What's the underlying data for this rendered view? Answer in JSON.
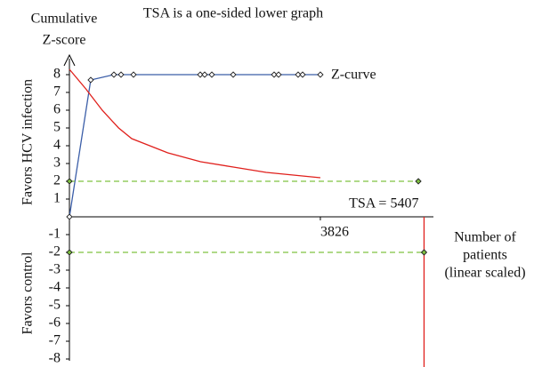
{
  "chart_data": {
    "type": "line",
    "title": "TSA is a one-sided lower graph",
    "y_label": [
      "Cumulative",
      "Z-score"
    ],
    "x_label": [
      "Number of",
      "patients",
      "(linear scaled)"
    ],
    "side_labels": [
      "Favors HCV infection",
      "Favors control"
    ],
    "xlim": [
      0,
      5550
    ],
    "ylim": [
      -8,
      8
    ],
    "xticks": [
      3826
    ],
    "yticks": [
      -8,
      -7,
      -6,
      -5,
      -4,
      -3,
      -2,
      -1,
      1,
      2,
      3,
      4,
      5,
      6,
      7,
      8
    ],
    "series": [
      {
        "name": "Z-curve",
        "color": "#3b5ea8",
        "markers": true,
        "x": [
          0,
          325,
          678,
          787,
          977,
          1995,
          2062,
          2171,
          2497,
          3121,
          3189,
          3487,
          3555,
          3826
        ],
        "values": [
          0,
          7.7,
          8,
          8,
          8,
          8,
          8,
          8,
          8,
          8,
          8,
          8,
          8,
          8
        ]
      },
      {
        "color": "#e0201c",
        "markers": false,
        "x": [
          0,
          250,
          500,
          750,
          950,
          1500,
          2000,
          2500,
          3000,
          3826
        ],
        "values": [
          8.3,
          7.2,
          6.0,
          5.0,
          4.4,
          3.6,
          3.1,
          2.8,
          2.5,
          2.2
        ]
      },
      {
        "color": "#7fc241",
        "markers": true,
        "dashed": true,
        "x": [
          0,
          5320
        ],
        "values": [
          2,
          2
        ]
      },
      {
        "color": "#7fc241",
        "markers": true,
        "dashed": true,
        "x": [
          0,
          5407
        ],
        "values": [
          -2,
          -2
        ]
      }
    ],
    "tsa": {
      "value": 5407,
      "label": "TSA = 5407",
      "color": "#e0201c"
    }
  }
}
